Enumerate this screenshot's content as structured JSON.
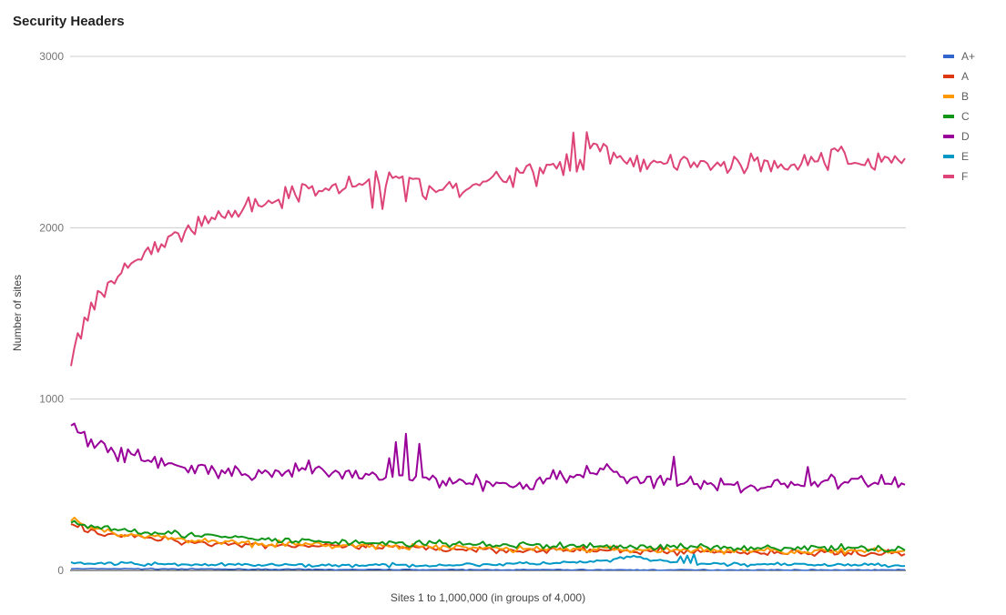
{
  "chart_data": {
    "type": "line",
    "title": "Security Headers",
    "xlabel": "Sites 1 to 1,000,000 (in groups of 4,000)",
    "ylabel": "Number of sites",
    "ylim": [
      0,
      3000
    ],
    "yticks": [
      0,
      1000,
      2000,
      3000
    ],
    "x_groups": 250,
    "grid": true,
    "legend_position": "right",
    "series": [
      {
        "name": "A+",
        "color": "#3366cc",
        "values": [
          10,
          10,
          8,
          7,
          5,
          5,
          4,
          4,
          4,
          3,
          3,
          3,
          3,
          3
        ]
      },
      {
        "name": "A",
        "color": "#dc3912",
        "values": [
          270,
          230,
          210,
          195,
          185,
          175,
          165,
          158,
          155,
          150,
          148,
          145,
          140,
          138,
          135,
          135,
          130,
          128,
          125,
          125,
          122,
          120,
          120,
          118,
          118,
          115,
          115,
          112,
          112,
          110,
          110,
          108,
          108,
          105,
          105,
          105,
          102,
          102,
          100,
          100,
          100
        ]
      },
      {
        "name": "B",
        "color": "#ff9900",
        "values": [
          300,
          245,
          225,
          210,
          195,
          185,
          175,
          170,
          165,
          160,
          155,
          150,
          148,
          146,
          142,
          140,
          138,
          135,
          133,
          131,
          130,
          128,
          126,
          125,
          124,
          123,
          122,
          121,
          120,
          119,
          118,
          117,
          116,
          115,
          114,
          113,
          112,
          111,
          110,
          110,
          110
        ]
      },
      {
        "name": "C",
        "color": "#109618",
        "values": [
          290,
          255,
          245,
          235,
          225,
          215,
          205,
          195,
          190,
          180,
          175,
          170,
          168,
          165,
          162,
          160,
          158,
          156,
          155,
          152,
          150,
          148,
          146,
          145,
          143,
          142,
          140,
          139,
          138,
          137,
          136,
          135,
          134,
          133,
          132,
          131,
          130,
          130,
          128,
          128,
          128
        ]
      },
      {
        "name": "D",
        "color": "#990099",
        "values": [
          860,
          770,
          720,
          700,
          680,
          660,
          640,
          620,
          600,
          590,
          580,
          570,
          560,
          555,
          550,
          550,
          600,
          580,
          575,
          560,
          550,
          545,
          540,
          540,
          535,
          530,
          530,
          525,
          520,
          515,
          510,
          500,
          495,
          520,
          540,
          560,
          570,
          560,
          600,
          550,
          540,
          530,
          520,
          510,
          505,
          500,
          500,
          495,
          490,
          490,
          500,
          505,
          510,
          515,
          520,
          515,
          510,
          510,
          520,
          510
        ]
      },
      {
        "name": "E",
        "color": "#0099c6",
        "values": [
          45,
          42,
          40,
          38,
          36,
          35,
          34,
          33,
          32,
          32,
          31,
          30,
          30,
          30,
          30,
          30,
          30,
          31,
          32,
          33,
          35,
          38,
          40,
          42,
          45,
          50,
          60,
          80,
          60,
          45,
          40,
          38,
          36,
          35,
          34,
          33,
          33,
          33,
          32,
          32,
          32
        ]
      },
      {
        "name": "F",
        "color": "#dd4477",
        "values": [
          1190,
          1420,
          1550,
          1640,
          1700,
          1760,
          1810,
          1850,
          1890,
          1920,
          1950,
          1980,
          2010,
          2040,
          2070,
          2090,
          2110,
          2130,
          2150,
          2165,
          2180,
          2195,
          2210,
          2225,
          2240,
          2250,
          2260,
          2270,
          2280,
          2285,
          2290,
          2280,
          2260,
          2240,
          2230,
          2220,
          2210,
          2220,
          2240,
          2260,
          2280,
          2300,
          2310,
          2320,
          2330,
          2340,
          2350,
          2360,
          2380,
          2420,
          2480,
          2450,
          2420,
          2400,
          2380,
          2370,
          2380,
          2390,
          2400,
          2390,
          2380,
          2370,
          2360,
          2370,
          2380,
          2390,
          2380,
          2370,
          2360,
          2380,
          2390,
          2400,
          2410,
          2400,
          2395,
          2390,
          2385,
          2395,
          2400,
          2410
        ]
      }
    ]
  }
}
